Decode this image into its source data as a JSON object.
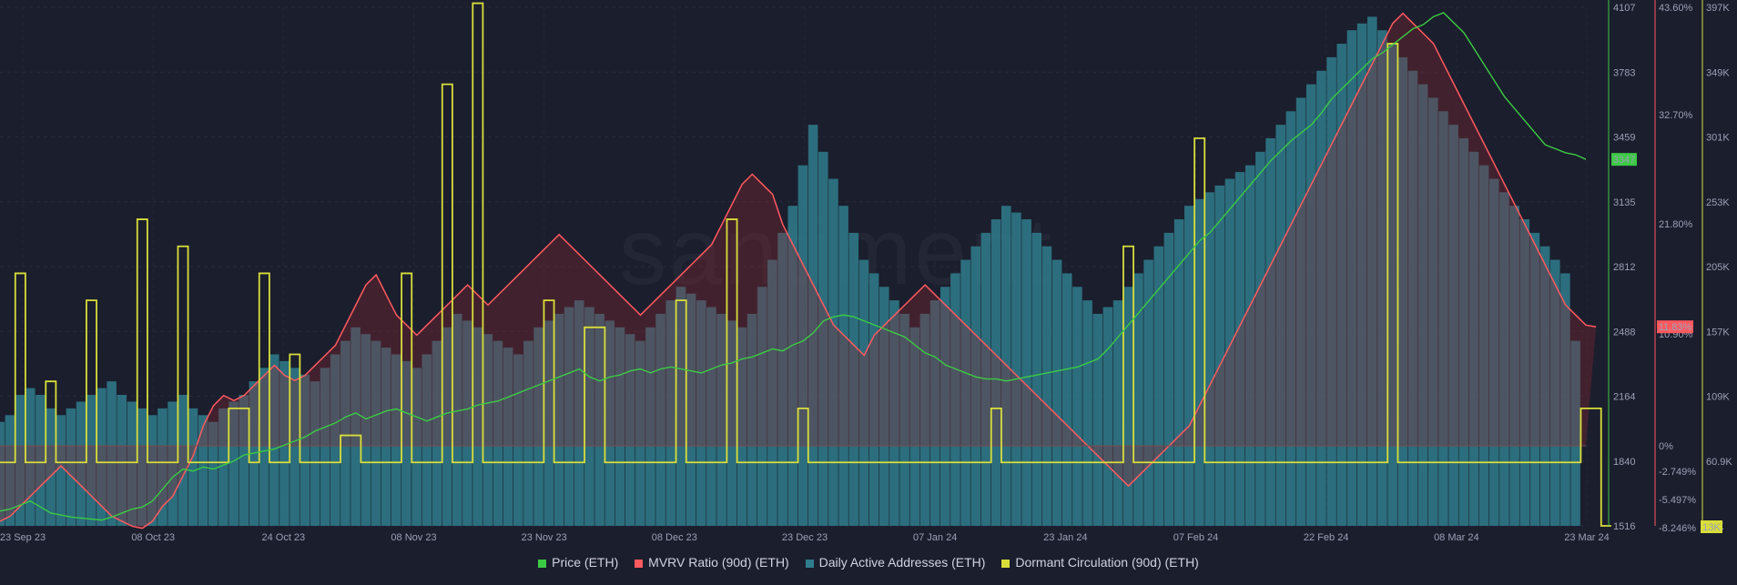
{
  "watermark": "santiment.",
  "colors": {
    "price": "#3ccb44",
    "mvrv": "#ff5a5f",
    "daa": "#2f7d8c",
    "dormant": "#d9de3a",
    "background": "#1b1e2d"
  },
  "legend": [
    {
      "label": "Price (ETH)",
      "color": "#3ccb44"
    },
    {
      "label": "MVRV Ratio (90d) (ETH)",
      "color": "#ff5a5f"
    },
    {
      "label": "Daily Active Addresses (ETH)",
      "color": "#2f7d8c"
    },
    {
      "label": "Dormant Circulation (90d) (ETH)",
      "color": "#d9de3a"
    }
  ],
  "chart_data": {
    "type": "line",
    "x_tick_labels": [
      "23 Sep 23",
      "08 Oct 23",
      "24 Oct 23",
      "08 Nov 23",
      "23 Nov 23",
      "08 Dec 23",
      "23 Dec 23",
      "07 Jan 24",
      "23 Jan 24",
      "07 Feb 24",
      "22 Feb 24",
      "08 Mar 24",
      "23 Mar 24"
    ],
    "y_axes": {
      "price": {
        "ticks": [
          "4107",
          "3783",
          "3459",
          "3135",
          "2812",
          "2488",
          "2164",
          "1840",
          "1516"
        ],
        "min": 1516,
        "max": 4107,
        "current": "3347"
      },
      "mvrv": {
        "ticks": [
          "43.60%",
          "32.70%",
          "21.80%",
          "10.90%",
          "0%",
          "-2.749%",
          "-5.497%",
          "-8.246%"
        ],
        "current": "11.83%"
      },
      "daa": {
        "ticks": [
          "397K",
          "349K",
          "301K",
          "253K",
          "205K",
          "157K",
          "109K",
          "60.9K",
          "13K"
        ],
        "min": 13000,
        "max": 397000,
        "current": "13K"
      }
    },
    "series": [
      {
        "name": "Price (ETH)",
        "key": "price",
        "values": [
          1590,
          1600,
          1620,
          1640,
          1610,
          1580,
          1570,
          1560,
          1555,
          1550,
          1545,
          1560,
          1580,
          1600,
          1610,
          1640,
          1700,
          1760,
          1800,
          1790,
          1810,
          1800,
          1820,
          1840,
          1870,
          1880,
          1890,
          1900,
          1920,
          1940,
          1960,
          1990,
          2010,
          2030,
          2060,
          2080,
          2050,
          2070,
          2090,
          2100,
          2080,
          2060,
          2040,
          2060,
          2080,
          2090,
          2100,
          2120,
          2130,
          2140,
          2160,
          2180,
          2200,
          2220,
          2240,
          2260,
          2280,
          2300,
          2260,
          2240,
          2260,
          2270,
          2290,
          2300,
          2280,
          2300,
          2310,
          2300,
          2290,
          2280,
          2300,
          2320,
          2330,
          2350,
          2360,
          2380,
          2400,
          2390,
          2420,
          2440,
          2480,
          2540,
          2560,
          2570,
          2560,
          2540,
          2520,
          2500,
          2480,
          2460,
          2420,
          2380,
          2360,
          2320,
          2300,
          2280,
          2260,
          2250,
          2250,
          2240,
          2250,
          2260,
          2270,
          2280,
          2290,
          2300,
          2310,
          2330,
          2350,
          2400,
          2460,
          2520,
          2580,
          2640,
          2700,
          2760,
          2820,
          2880,
          2940,
          2980,
          3040,
          3100,
          3160,
          3220,
          3280,
          3340,
          3390,
          3440,
          3480,
          3520,
          3580,
          3650,
          3700,
          3750,
          3800,
          3850,
          3880,
          3920,
          3960,
          4000,
          4020,
          4060,
          4080,
          4030,
          3980,
          3900,
          3820,
          3740,
          3660,
          3600,
          3540,
          3480,
          3420,
          3400,
          3380,
          3370,
          3347
        ]
      },
      {
        "name": "MVRV Ratio (90d) (ETH)",
        "key": "mvrv",
        "values": [
          -7.5,
          -7,
          -6,
          -5,
          -4,
          -3,
          -2,
          -3,
          -4,
          -5,
          -6,
          -7,
          -7.5,
          -8,
          -8.2,
          -7.5,
          -6,
          -5,
          -3,
          -1,
          2,
          4,
          5,
          4.5,
          5,
          6,
          7,
          8,
          7,
          6.5,
          7,
          8,
          9,
          10,
          12,
          14,
          16,
          17,
          15,
          13,
          12,
          11,
          12,
          13,
          14,
          15,
          16,
          15,
          14,
          15,
          16,
          17,
          18,
          19,
          20,
          21,
          20,
          19,
          18,
          17,
          16,
          15,
          14,
          13,
          14,
          15,
          16,
          17,
          18,
          19,
          20,
          22,
          24,
          26,
          27,
          26,
          25,
          22,
          20,
          18,
          16,
          14,
          12,
          11,
          10,
          9,
          11,
          12,
          13,
          14,
          15,
          16,
          15,
          14,
          13,
          12,
          11,
          10,
          9,
          8,
          7,
          6,
          5,
          4,
          3,
          2,
          1,
          0,
          -1,
          -2,
          -3,
          -4,
          -3,
          -2,
          -1,
          0,
          1,
          2,
          4,
          6,
          8,
          10,
          12,
          14,
          16,
          18,
          20,
          22,
          24,
          26,
          28,
          30,
          32,
          34,
          36,
          38,
          40,
          42,
          43,
          42,
          41,
          40,
          38,
          36,
          34,
          32,
          30,
          28,
          26,
          24,
          22,
          20,
          18,
          16,
          14,
          13,
          12,
          11.83
        ]
      },
      {
        "name": "Daily Active Addresses (ETH)",
        "key": "daa",
        "values": [
          90000,
          95000,
          110000,
          115000,
          110000,
          100000,
          95000,
          100000,
          105000,
          110000,
          115000,
          120000,
          110000,
          105000,
          100000,
          95000,
          100000,
          105000,
          110000,
          100000,
          95000,
          90000,
          100000,
          105000,
          110000,
          120000,
          130000,
          140000,
          135000,
          130000,
          125000,
          120000,
          130000,
          140000,
          150000,
          160000,
          155000,
          150000,
          145000,
          140000,
          135000,
          130000,
          140000,
          150000,
          160000,
          170000,
          165000,
          160000,
          155000,
          150000,
          145000,
          140000,
          150000,
          160000,
          165000,
          170000,
          175000,
          180000,
          175000,
          170000,
          165000,
          160000,
          155000,
          150000,
          160000,
          170000,
          180000,
          190000,
          185000,
          180000,
          175000,
          170000,
          165000,
          160000,
          170000,
          190000,
          210000,
          230000,
          250000,
          280000,
          310000,
          290000,
          270000,
          250000,
          230000,
          210000,
          200000,
          190000,
          180000,
          170000,
          160000,
          170000,
          180000,
          190000,
          200000,
          210000,
          220000,
          230000,
          240000,
          250000,
          245000,
          240000,
          230000,
          220000,
          210000,
          200000,
          190000,
          180000,
          170000,
          175000,
          180000,
          190000,
          200000,
          210000,
          220000,
          230000,
          240000,
          250000,
          255000,
          260000,
          265000,
          270000,
          275000,
          280000,
          290000,
          300000,
          310000,
          320000,
          330000,
          340000,
          350000,
          360000,
          370000,
          380000,
          385000,
          390000,
          380000,
          370000,
          360000,
          350000,
          340000,
          330000,
          320000,
          310000,
          300000,
          290000,
          280000,
          270000,
          260000,
          250000,
          240000,
          230000,
          220000,
          210000,
          200000,
          150000,
          13000
        ]
      },
      {
        "name": "Dormant Circulation (90d) (ETH)",
        "key": "dormant",
        "values": [
          60000,
          60000,
          200000,
          60000,
          60000,
          120000,
          60000,
          60000,
          60000,
          180000,
          60000,
          60000,
          60000,
          60000,
          240000,
          60000,
          60000,
          60000,
          220000,
          60000,
          60000,
          60000,
          60000,
          100000,
          100000,
          60000,
          200000,
          60000,
          60000,
          140000,
          60000,
          60000,
          60000,
          60000,
          80000,
          80000,
          60000,
          60000,
          60000,
          60000,
          200000,
          60000,
          60000,
          60000,
          340000,
          60000,
          60000,
          400000,
          60000,
          60000,
          60000,
          60000,
          60000,
          60000,
          180000,
          60000,
          60000,
          60000,
          160000,
          160000,
          60000,
          60000,
          60000,
          60000,
          60000,
          60000,
          60000,
          180000,
          60000,
          60000,
          60000,
          60000,
          240000,
          60000,
          60000,
          60000,
          60000,
          60000,
          60000,
          100000,
          60000,
          60000,
          60000,
          60000,
          60000,
          60000,
          60000,
          60000,
          60000,
          60000,
          60000,
          60000,
          60000,
          60000,
          60000,
          60000,
          60000,
          60000,
          100000,
          60000,
          60000,
          60000,
          60000,
          60000,
          60000,
          60000,
          60000,
          60000,
          60000,
          60000,
          60000,
          220000,
          60000,
          60000,
          60000,
          60000,
          60000,
          60000,
          300000,
          60000,
          60000,
          60000,
          60000,
          60000,
          60000,
          60000,
          60000,
          60000,
          60000,
          60000,
          60000,
          60000,
          60000,
          60000,
          60000,
          60000,
          60000,
          370000,
          60000,
          60000,
          60000,
          60000,
          60000,
          60000,
          60000,
          60000,
          60000,
          60000,
          60000,
          60000,
          60000,
          60000,
          60000,
          60000,
          60000,
          60000,
          100000,
          100000,
          13000
        ]
      }
    ]
  }
}
